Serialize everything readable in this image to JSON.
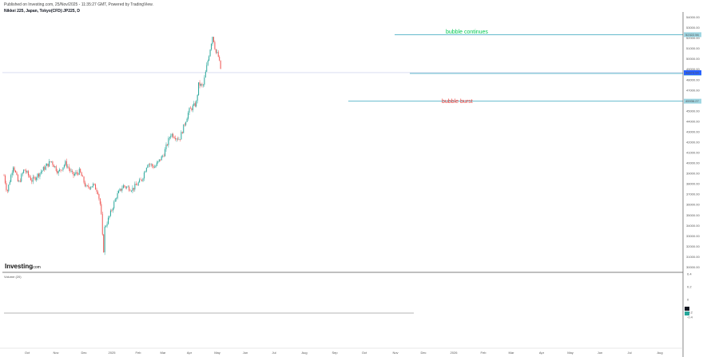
{
  "header": {
    "published": "Published on Investing.com, 25/Nov/2025 - 11:35:27 GMT, Powered by TradingView.",
    "symbol": "Nikkei 225, Japan, Tokyo(CFD):JP225, D"
  },
  "logo": {
    "text": "Investing",
    "suffix": ".com"
  },
  "volume_label": "Volume (20)",
  "colors": {
    "up": "#26a69a",
    "down": "#ef5350",
    "level_line": "#4fb0c6",
    "bubble_continues": "#00c853",
    "bubble_burst": "#e53935"
  },
  "chart_data": [
    {
      "type": "candlestick",
      "title": "",
      "x_tick_labels": [
        "Oct",
        "Nov",
        "Dec",
        "2025",
        "Feb",
        "Mar",
        "Apr",
        "May",
        "Jun",
        "Jul",
        "Aug",
        "Sep",
        "Oct",
        "Nov",
        "Dec",
        "2026",
        "Feb",
        "Mar",
        "Apr",
        "May",
        "Jun",
        "Jul",
        "Aug"
      ],
      "y_tick_labels": [
        "30000.00",
        "31000.00",
        "32000.00",
        "33000.00",
        "34000.00",
        "35000.00",
        "36000.00",
        "37000.00",
        "38000.00",
        "39000.00",
        "40000.00",
        "41000.00",
        "42000.00",
        "43000.00",
        "44000.00",
        "45000.00",
        "46000.00",
        "47000.00",
        "48000.00",
        "49000.00",
        "50000.00",
        "51000.00",
        "52000.00",
        "53000.00",
        "54000.00"
      ],
      "ylim": [
        29500,
        54500
      ],
      "grid": false,
      "price_path": [
        [
          "2024-09-27",
          38800
        ],
        [
          "2024-10-03",
          37200
        ],
        [
          "2024-10-15",
          39800
        ],
        [
          "2024-10-25",
          38000
        ],
        [
          "2024-11-05",
          39400
        ],
        [
          "2024-11-20",
          38300
        ],
        [
          "2024-12-10",
          39300
        ],
        [
          "2024-12-27",
          40200
        ],
        [
          "2025-01-10",
          39100
        ],
        [
          "2025-01-24",
          40000
        ],
        [
          "2025-02-07",
          38800
        ],
        [
          "2025-02-20",
          39200
        ],
        [
          "2025-03-05",
          37600
        ],
        [
          "2025-03-18",
          37900
        ],
        [
          "2025-03-27",
          37300
        ],
        [
          "2025-04-02",
          35700
        ],
        [
          "2025-04-07",
          31200
        ],
        [
          "2025-04-09",
          33700
        ],
        [
          "2025-04-18",
          34800
        ],
        [
          "2025-05-02",
          36800
        ],
        [
          "2025-05-15",
          37800
        ],
        [
          "2025-06-02",
          37500
        ],
        [
          "2025-06-20",
          38400
        ],
        [
          "2025-07-01",
          40000
        ],
        [
          "2025-07-15",
          39600
        ],
        [
          "2025-08-01",
          40800
        ],
        [
          "2025-08-15",
          42800
        ],
        [
          "2025-09-01",
          42300
        ],
        [
          "2025-09-19",
          45000
        ],
        [
          "2025-10-03",
          45700
        ],
        [
          "2025-10-08",
          47600
        ],
        [
          "2025-10-16",
          47300
        ],
        [
          "2025-10-27",
          50200
        ],
        [
          "2025-11-04",
          52300
        ],
        [
          "2025-11-10",
          50600
        ],
        [
          "2025-11-14",
          50400
        ],
        [
          "2025-11-21",
          48600
        ]
      ],
      "last_price_label": "48673.94",
      "levels": [
        {
          "label": "52322.56",
          "value": 52322.56
        },
        {
          "label": "48600.63",
          "value": 48600.63
        },
        {
          "label": "45936.27",
          "value": 45936.27
        }
      ],
      "annotations": [
        "bubble continues",
        "bubble burst"
      ],
      "volume_tick_labels": [
        "0.4",
        "0.2",
        "0",
        "-0.2",
        "-0.4"
      ]
    }
  ]
}
